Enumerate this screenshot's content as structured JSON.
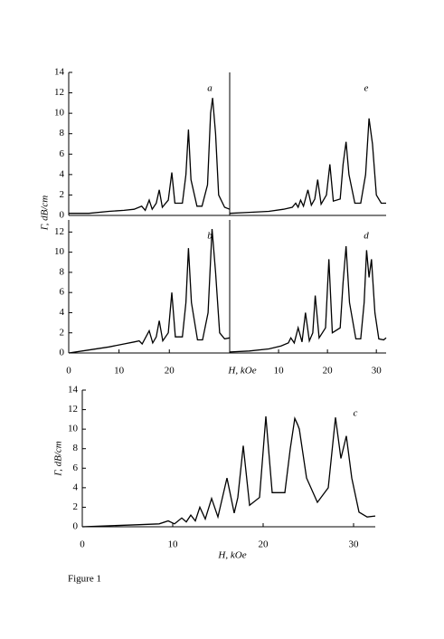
{
  "chart_data": [
    {
      "type": "line",
      "label": "a",
      "ylabel": "Γ, dB/cm",
      "xlim": [
        0,
        32
      ],
      "ylim": [
        0,
        14
      ],
      "yticks": [
        0,
        2,
        4,
        6,
        8,
        10,
        12,
        14
      ],
      "x": [
        0,
        4,
        8,
        11,
        13,
        14.5,
        15.2,
        16,
        16.6,
        17.4,
        18,
        18.6,
        19.8,
        20.5,
        21.1,
        22.6,
        23.3,
        23.8,
        24.3,
        25.5,
        26.5,
        27.6,
        28.2,
        28.6,
        29.2,
        29.8,
        31,
        32
      ],
      "values": [
        0.2,
        0.2,
        0.4,
        0.5,
        0.6,
        0.9,
        0.5,
        1.5,
        0.6,
        1.2,
        2.5,
        0.8,
        1.5,
        4.2,
        1.2,
        1.2,
        4,
        8.4,
        3.5,
        0.9,
        0.9,
        3,
        10,
        11.5,
        8,
        2,
        0.8,
        0.6
      ]
    },
    {
      "type": "line",
      "label": "e",
      "xlim": [
        0,
        32
      ],
      "ylim": [
        0,
        14
      ],
      "x": [
        0,
        4,
        8,
        11,
        12.8,
        13.5,
        14,
        14.5,
        15.1,
        16,
        16.7,
        17.4,
        18,
        18.7,
        19.8,
        20.5,
        21.2,
        22.6,
        23.2,
        23.8,
        24.4,
        25.6,
        26.8,
        27.8,
        28.5,
        29.2,
        30,
        31,
        32
      ],
      "values": [
        0.2,
        0.3,
        0.4,
        0.6,
        0.8,
        1.2,
        0.8,
        1.5,
        0.9,
        2.5,
        1,
        1.6,
        3.5,
        1.1,
        2,
        5,
        1.4,
        1.6,
        5,
        7.2,
        4,
        1.2,
        1.2,
        4,
        9.5,
        7,
        2,
        1.2,
        1.2
      ]
    },
    {
      "type": "line",
      "label": "b",
      "xlabel": "H, kOe",
      "xlim": [
        0,
        32
      ],
      "ylim": [
        0,
        13.2
      ],
      "yticks": [
        0,
        2,
        4,
        6,
        8,
        10,
        12
      ],
      "xticks": [
        0,
        10,
        20
      ],
      "x": [
        0,
        4,
        8,
        11,
        13,
        14,
        14.6,
        16,
        16.7,
        17.4,
        18,
        18.7,
        19.8,
        20.5,
        21.2,
        22.6,
        23.3,
        23.8,
        24.4,
        25.6,
        26.6,
        27.7,
        28.5,
        29.2,
        30,
        31,
        32
      ],
      "values": [
        0,
        0.3,
        0.6,
        0.9,
        1.1,
        1.2,
        0.9,
        2.2,
        1,
        1.6,
        3.2,
        1.2,
        2,
        6,
        1.6,
        1.6,
        5,
        10.4,
        5,
        1.3,
        1.3,
        4,
        12.3,
        8,
        2,
        1.4,
        1.5
      ]
    },
    {
      "type": "line",
      "label": "d",
      "xlim": [
        0,
        32
      ],
      "ylim": [
        0,
        13.2
      ],
      "xticks": [
        10,
        20,
        30
      ],
      "x": [
        0,
        4,
        8,
        10.5,
        12,
        12.5,
        13.2,
        14,
        14.8,
        15.5,
        16.3,
        17,
        17.5,
        18.3,
        19.6,
        20.3,
        21,
        22.6,
        23.2,
        23.8,
        24.5,
        25.8,
        26.8,
        27.5,
        28,
        28.5,
        29,
        29.7,
        30.5,
        31.5,
        32
      ],
      "values": [
        0.1,
        0.2,
        0.4,
        0.7,
        1,
        1.5,
        1,
        2.5,
        1.1,
        4,
        1.2,
        2,
        5.7,
        1.5,
        2.5,
        9.3,
        2,
        2.5,
        7,
        10.6,
        5,
        1.4,
        1.4,
        5,
        10.2,
        7.5,
        9.3,
        4,
        1.4,
        1.3,
        1.5
      ]
    },
    {
      "type": "line",
      "label": "c",
      "ylabel": "Γ, dB/cm",
      "xlabel": "H, kOe",
      "xlim": [
        0,
        32.4
      ],
      "ylim": [
        0,
        14
      ],
      "yticks": [
        0,
        2,
        4,
        6,
        8,
        10,
        12,
        14
      ],
      "xticks": [
        0,
        10,
        20,
        30
      ],
      "x": [
        0,
        3,
        6,
        8.5,
        9.5,
        10.2,
        11,
        11.5,
        12,
        12.5,
        13,
        13.6,
        14.3,
        15,
        16,
        16.8,
        17.2,
        17.8,
        18.5,
        19.6,
        20.3,
        21,
        22.4,
        23,
        23.5,
        23.8,
        24,
        24.8,
        26,
        27.2,
        28,
        28.6,
        29.2,
        29.8,
        30.6,
        31.5,
        32.4
      ],
      "values": [
        0,
        0.1,
        0.2,
        0.3,
        0.6,
        0.3,
        0.9,
        0.5,
        1.2,
        0.6,
        2,
        0.8,
        2.9,
        1,
        5,
        1.4,
        3,
        8.3,
        2.2,
        3,
        11.3,
        3.5,
        3.5,
        8,
        11.1,
        10.5,
        10,
        5,
        2.5,
        4,
        11.2,
        7,
        9.3,
        5,
        1.5,
        1,
        1.1
      ]
    }
  ],
  "caption": "Figure 1"
}
